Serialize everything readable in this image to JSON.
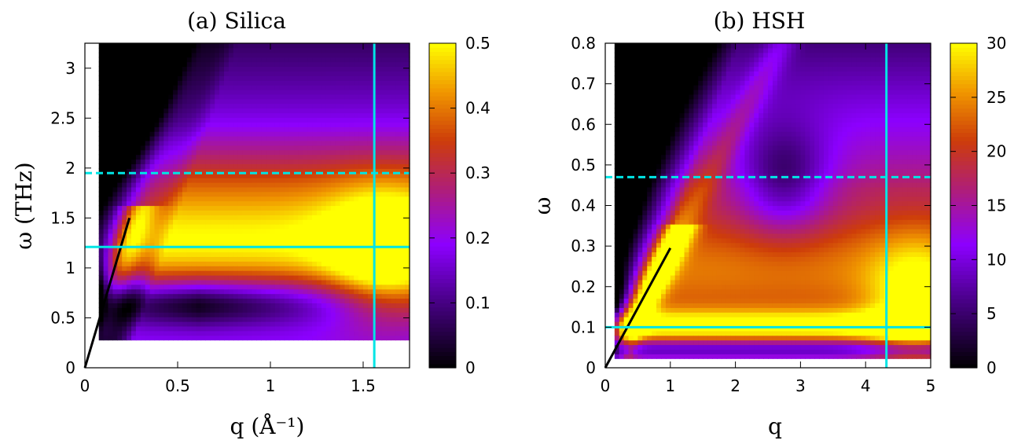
{
  "chart_data": [
    {
      "type": "heatmap",
      "title": "(a) Silica",
      "xlabel": "q (Å⁻¹)",
      "ylabel": "ω (THz)",
      "xlim": [
        0,
        1.75
      ],
      "ylim": [
        0,
        3.25
      ],
      "x_ticks": [
        0,
        0.5,
        1,
        1.5
      ],
      "x_tick_labels": [
        "0",
        "0.5",
        "1",
        "1.5"
      ],
      "y_ticks": [
        0,
        0.5,
        1,
        1.5,
        2,
        2.5,
        3
      ],
      "y_tick_labels": [
        "0",
        "0.5",
        "1",
        "1.5",
        "2",
        "2.5",
        "3"
      ],
      "colorbar": {
        "range": [
          0,
          0.5
        ],
        "ticks": [
          0,
          0.1,
          0.2,
          0.3,
          0.4,
          0.5
        ],
        "tick_labels": [
          "0",
          "0.1",
          "0.2",
          "0.3",
          "0.4",
          "0.5"
        ]
      },
      "data_region": {
        "q_min": 0.08,
        "omega_min": 0.3
      },
      "peak_ridge_q": 0.25,
      "peak_ridge_omega": 1.5,
      "sound_line": {
        "x": [
          0,
          0.24
        ],
        "y": [
          0,
          1.5
        ],
        "color": "#000000"
      },
      "reference_lines": [
        {
          "orientation": "horizontal",
          "value": 1.95,
          "style": "dashed",
          "color": "#00e5e5"
        },
        {
          "orientation": "horizontal",
          "value": 1.21,
          "style": "solid",
          "color": "#00e5e5"
        },
        {
          "orientation": "vertical",
          "value": 1.56,
          "style": "solid",
          "color": "#00e5e5"
        }
      ]
    },
    {
      "type": "heatmap",
      "title": "(b) HSH",
      "xlabel": "q",
      "ylabel": "ω",
      "xlim": [
        0,
        5
      ],
      "ylim": [
        0,
        0.8
      ],
      "x_ticks": [
        0,
        1,
        2,
        3,
        4,
        5
      ],
      "x_tick_labels": [
        "0",
        "1",
        "2",
        "3",
        "4",
        "5"
      ],
      "y_ticks": [
        0,
        0.1,
        0.2,
        0.3,
        0.4,
        0.5,
        0.6,
        0.7,
        0.8
      ],
      "y_tick_labels": [
        "0",
        "0.1",
        "0.2",
        "0.3",
        "0.4",
        "0.5",
        "0.6",
        "0.7",
        "0.8"
      ],
      "colorbar": {
        "range": [
          0,
          30
        ],
        "ticks": [
          0,
          5,
          10,
          15,
          20,
          25,
          30
        ],
        "tick_labels": [
          "0",
          "5",
          "10",
          "15",
          "20",
          "25",
          "30"
        ]
      },
      "data_region": {
        "q_min": 0.15,
        "omega_min": 0.02
      },
      "peak_ridge_q": 1.0,
      "peak_ridge_omega": 0.3,
      "sound_line": {
        "x": [
          0,
          1.0
        ],
        "y": [
          0,
          0.295
        ],
        "color": "#000000"
      },
      "reference_lines": [
        {
          "orientation": "horizontal",
          "value": 0.47,
          "style": "dashed",
          "color": "#00e5e5"
        },
        {
          "orientation": "horizontal",
          "value": 0.1,
          "style": "solid",
          "color": "#00e5e5"
        },
        {
          "orientation": "vertical",
          "value": 4.32,
          "style": "solid",
          "color": "#00e5e5"
        }
      ]
    }
  ]
}
